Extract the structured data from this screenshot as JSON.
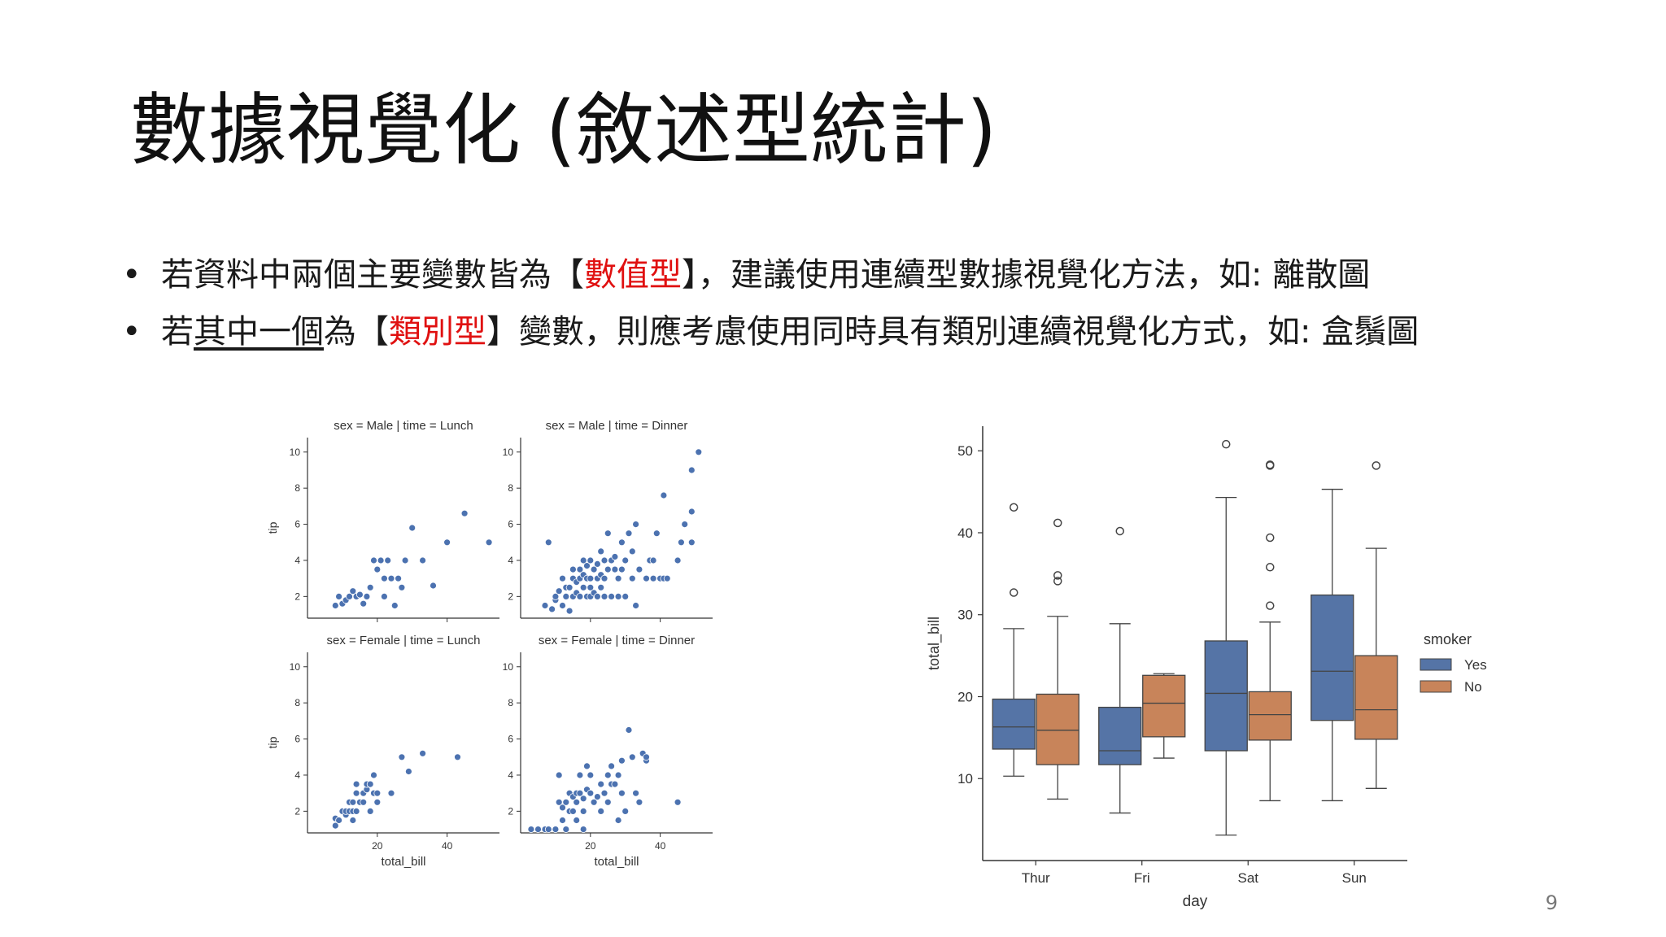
{
  "slide": {
    "title": "數據視覺化 (敘述型統計)",
    "bullet1": {
      "dot": "•",
      "before": "若資料中兩個主要變數皆為【",
      "highlight": "數值型",
      "after": "】，建議使用連續型數據視覺化方法，如: 離散圖"
    },
    "bullet2": {
      "dot": "•",
      "before": "若",
      "underlined": "其中一個",
      "middle": "為【",
      "highlight": "類別型",
      "after": "】變數，則應考慮使用同時具有類別連續視覺化方式，如: 盒鬚圖"
    },
    "page_number": "9"
  },
  "colors": {
    "accent_red": "#e01010",
    "point_blue": "#4c72b0",
    "box_yes": "#5574a6",
    "box_no": "#c8845a"
  },
  "chart_data": [
    {
      "type": "scatter",
      "facet": "sex = Male | time = Lunch",
      "title": "sex = Male | time = Lunch",
      "ylabel": "tip",
      "xlabel": "",
      "xlim": [
        0,
        55
      ],
      "ylim": [
        0.8,
        10.8
      ],
      "xticks": [
        20,
        40
      ],
      "yticks": [
        2,
        4,
        6,
        8,
        10
      ],
      "points": [
        [
          8,
          1.5
        ],
        [
          9,
          2
        ],
        [
          10,
          1.6
        ],
        [
          11,
          1.8
        ],
        [
          12,
          2
        ],
        [
          13,
          2.3
        ],
        [
          14,
          2
        ],
        [
          15,
          2.1
        ],
        [
          16,
          1.6
        ],
        [
          17,
          2
        ],
        [
          18,
          2.5
        ],
        [
          19,
          4
        ],
        [
          20,
          3.5
        ],
        [
          21,
          4
        ],
        [
          22,
          2
        ],
        [
          22,
          3
        ],
        [
          23,
          4
        ],
        [
          24,
          3
        ],
        [
          25,
          1.5
        ],
        [
          26,
          3
        ],
        [
          27,
          2.5
        ],
        [
          28,
          4
        ],
        [
          30,
          5.8
        ],
        [
          33,
          4
        ],
        [
          36,
          2.6
        ],
        [
          40,
          5
        ],
        [
          45,
          6.6
        ],
        [
          52,
          5
        ]
      ]
    },
    {
      "type": "scatter",
      "facet": "sex = Male | time = Dinner",
      "title": "sex = Male | time = Dinner",
      "ylabel": "",
      "xlabel": "",
      "xlim": [
        0,
        55
      ],
      "ylim": [
        0.8,
        10.8
      ],
      "xticks": [
        20,
        40
      ],
      "yticks": [
        2,
        4,
        6,
        8,
        10
      ],
      "points": [
        [
          7,
          1.5
        ],
        [
          8,
          5
        ],
        [
          9,
          1.3
        ],
        [
          10,
          1.8
        ],
        [
          10,
          2
        ],
        [
          11,
          2.3
        ],
        [
          12,
          1.5
        ],
        [
          12,
          3
        ],
        [
          13,
          2
        ],
        [
          13,
          2.5
        ],
        [
          14,
          1.2
        ],
        [
          14,
          2.5
        ],
        [
          15,
          2
        ],
        [
          15,
          3
        ],
        [
          15,
          3.5
        ],
        [
          16,
          2.2
        ],
        [
          16,
          2.8
        ],
        [
          17,
          2
        ],
        [
          17,
          3
        ],
        [
          17,
          3.5
        ],
        [
          18,
          2.5
        ],
        [
          18,
          3.2
        ],
        [
          18,
          4
        ],
        [
          19,
          2
        ],
        [
          19,
          3
        ],
        [
          19,
          3.7
        ],
        [
          20,
          2
        ],
        [
          20,
          2.5
        ],
        [
          20,
          3
        ],
        [
          20,
          4
        ],
        [
          21,
          2.2
        ],
        [
          21,
          3.5
        ],
        [
          22,
          2
        ],
        [
          22,
          3
        ],
        [
          22,
          3.8
        ],
        [
          23,
          2.5
        ],
        [
          23,
          3.2
        ],
        [
          23,
          4.5
        ],
        [
          24,
          2
        ],
        [
          24,
          3
        ],
        [
          24,
          4
        ],
        [
          25,
          5.5
        ],
        [
          25,
          3.5
        ],
        [
          26,
          2
        ],
        [
          26,
          4
        ],
        [
          27,
          3.5
        ],
        [
          27,
          4.2
        ],
        [
          28,
          2
        ],
        [
          28,
          3
        ],
        [
          29,
          3.5
        ],
        [
          29,
          5
        ],
        [
          30,
          2
        ],
        [
          30,
          4
        ],
        [
          31,
          5.5
        ],
        [
          32,
          3
        ],
        [
          32,
          4.5
        ],
        [
          33,
          1.5
        ],
        [
          33,
          6
        ],
        [
          34,
          3.5
        ],
        [
          36,
          3
        ],
        [
          37,
          4
        ],
        [
          38,
          3
        ],
        [
          38,
          4
        ],
        [
          39,
          5.5
        ],
        [
          40,
          3
        ],
        [
          41,
          3
        ],
        [
          41,
          7.6
        ],
        [
          42,
          3
        ],
        [
          45,
          4
        ],
        [
          46,
          5
        ],
        [
          47,
          6
        ],
        [
          49,
          5
        ],
        [
          49,
          6.7
        ],
        [
          49,
          9
        ],
        [
          51,
          10
        ]
      ]
    },
    {
      "type": "scatter",
      "facet": "sex = Female | time = Lunch",
      "title": "sex = Female | time = Lunch",
      "ylabel": "tip",
      "xlabel": "total_bill",
      "xlim": [
        0,
        55
      ],
      "ylim": [
        0.8,
        10.8
      ],
      "xticks": [
        20,
        40
      ],
      "yticks": [
        2,
        4,
        6,
        8,
        10
      ],
      "points": [
        [
          8,
          1.2
        ],
        [
          8,
          1.6
        ],
        [
          9,
          1.5
        ],
        [
          10,
          2
        ],
        [
          11,
          1.8
        ],
        [
          11,
          2
        ],
        [
          12,
          2
        ],
        [
          12,
          2.5
        ],
        [
          13,
          1.5
        ],
        [
          13,
          2
        ],
        [
          13,
          2.5
        ],
        [
          14,
          2
        ],
        [
          14,
          3
        ],
        [
          14,
          3.5
        ],
        [
          15,
          2.5
        ],
        [
          16,
          2.5
        ],
        [
          16,
          3
        ],
        [
          17,
          3.2
        ],
        [
          17,
          3.5
        ],
        [
          18,
          2
        ],
        [
          18,
          3.5
        ],
        [
          19,
          3
        ],
        [
          19,
          4
        ],
        [
          20,
          2.5
        ],
        [
          20,
          3
        ],
        [
          24,
          3
        ],
        [
          27,
          5
        ],
        [
          29,
          4.2
        ],
        [
          33,
          5.2
        ],
        [
          43,
          5
        ]
      ]
    },
    {
      "type": "scatter",
      "facet": "sex = Female | time = Dinner",
      "title": "sex = Female | time = Dinner",
      "ylabel": "",
      "xlabel": "total_bill",
      "xlim": [
        0,
        55
      ],
      "ylim": [
        0.8,
        10.8
      ],
      "xticks": [
        20,
        40
      ],
      "yticks": [
        2,
        4,
        6,
        8,
        10
      ],
      "points": [
        [
          3,
          1
        ],
        [
          5,
          1
        ],
        [
          7,
          1
        ],
        [
          8,
          1
        ],
        [
          10,
          1
        ],
        [
          11,
          2.5
        ],
        [
          11,
          4
        ],
        [
          12,
          1.5
        ],
        [
          12,
          2.2
        ],
        [
          13,
          1
        ],
        [
          13,
          2.5
        ],
        [
          14,
          2
        ],
        [
          14,
          3
        ],
        [
          15,
          2
        ],
        [
          15,
          2.8
        ],
        [
          16,
          1.5
        ],
        [
          16,
          2.5
        ],
        [
          16,
          3
        ],
        [
          17,
          3
        ],
        [
          17,
          4
        ],
        [
          18,
          1
        ],
        [
          18,
          2
        ],
        [
          18,
          2.7
        ],
        [
          19,
          3.2
        ],
        [
          19,
          4.5
        ],
        [
          20,
          3
        ],
        [
          20,
          4
        ],
        [
          21,
          2.5
        ],
        [
          22,
          2.8
        ],
        [
          23,
          2
        ],
        [
          23,
          3.5
        ],
        [
          24,
          3
        ],
        [
          25,
          2.5
        ],
        [
          25,
          4
        ],
        [
          26,
          3.5
        ],
        [
          26,
          4.5
        ],
        [
          27,
          3.5
        ],
        [
          28,
          1.5
        ],
        [
          28,
          4
        ],
        [
          29,
          3
        ],
        [
          29,
          4.8
        ],
        [
          30,
          2
        ],
        [
          31,
          6.5
        ],
        [
          32,
          5
        ],
        [
          33,
          3
        ],
        [
          34,
          2.5
        ],
        [
          35,
          5.2
        ],
        [
          36,
          4.8
        ],
        [
          36,
          5
        ],
        [
          45,
          2.5
        ]
      ]
    },
    {
      "type": "box",
      "categories": [
        "Thur",
        "Fri",
        "Sat",
        "Sun"
      ],
      "xlabel": "day",
      "ylabel": "total_bill",
      "ylim": [
        0,
        53
      ],
      "yticks": [
        10,
        20,
        30,
        40,
        50
      ],
      "legend_title": "smoker",
      "legend_position": "right",
      "series": [
        {
          "name": "Yes",
          "boxes": [
            {
              "whisker_low": 10.3,
              "q1": 13.6,
              "median": 16.3,
              "q3": 19.7,
              "whisker_high": 28.3,
              "outliers": [
                32.7,
                43.1
              ]
            },
            {
              "whisker_low": 5.8,
              "q1": 11.7,
              "median": 13.4,
              "q3": 18.7,
              "whisker_high": 28.9,
              "outliers": [
                40.2
              ]
            },
            {
              "whisker_low": 3.1,
              "q1": 13.4,
              "median": 20.4,
              "q3": 26.8,
              "whisker_high": 44.3,
              "outliers": [
                50.8
              ]
            },
            {
              "whisker_low": 7.3,
              "q1": 17.1,
              "median": 23.1,
              "q3": 32.4,
              "whisker_high": 45.3,
              "outliers": []
            }
          ]
        },
        {
          "name": "No",
          "boxes": [
            {
              "whisker_low": 7.5,
              "q1": 11.7,
              "median": 15.9,
              "q3": 20.3,
              "whisker_high": 29.8,
              "outliers": [
                34.1,
                34.8,
                41.2
              ]
            },
            {
              "whisker_low": 12.5,
              "q1": 15.1,
              "median": 19.2,
              "q3": 22.6,
              "whisker_high": 22.8,
              "outliers": []
            },
            {
              "whisker_low": 7.3,
              "q1": 14.7,
              "median": 17.8,
              "q3": 20.6,
              "whisker_high": 29.1,
              "outliers": [
                31.1,
                35.8,
                39.4,
                48.2,
                48.3
              ]
            },
            {
              "whisker_low": 8.8,
              "q1": 14.8,
              "median": 18.4,
              "q3": 25.0,
              "whisker_high": 38.1,
              "outliers": [
                48.2
              ]
            }
          ]
        }
      ]
    }
  ]
}
